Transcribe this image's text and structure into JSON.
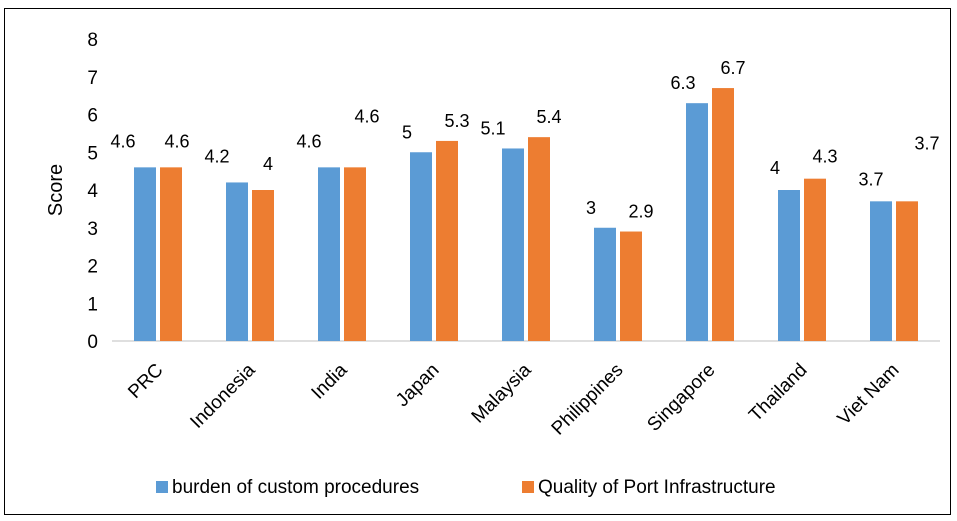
{
  "chart_data": {
    "type": "bar",
    "categories": [
      "PRC",
      "Indonesia",
      "India",
      "Japan",
      "Malaysia",
      "Philippines",
      "Singapore",
      "Thailand",
      "Viet Nam"
    ],
    "series": [
      {
        "name": "burden of custom procedures",
        "values": [
          4.6,
          4.2,
          4.6,
          5.0,
          5.1,
          3.0,
          6.3,
          4.0,
          3.7
        ],
        "labels": [
          "4.6",
          "4.2",
          "4.6",
          "5",
          "5.1",
          "3",
          "6.3",
          "4",
          "3.7"
        ],
        "color": "#5B9BD5"
      },
      {
        "name": "Quality of Port Infrastructure",
        "values": [
          4.6,
          4.0,
          4.6,
          5.3,
          5.4,
          2.9,
          6.7,
          4.3,
          3.7
        ],
        "labels": [
          "4.6",
          "4",
          "4.6",
          "5.3",
          "5.4",
          "2.9",
          "6.7",
          "4.3",
          "3.7"
        ],
        "color": "#ED7D31"
      }
    ],
    "ylabel": "Score",
    "xlabel": "",
    "ylim": [
      0,
      8
    ],
    "yticks": [
      "0",
      "1",
      "2",
      "3",
      "4",
      "5",
      "6",
      "7",
      "8"
    ],
    "grid": false,
    "legend": "bottom"
  }
}
